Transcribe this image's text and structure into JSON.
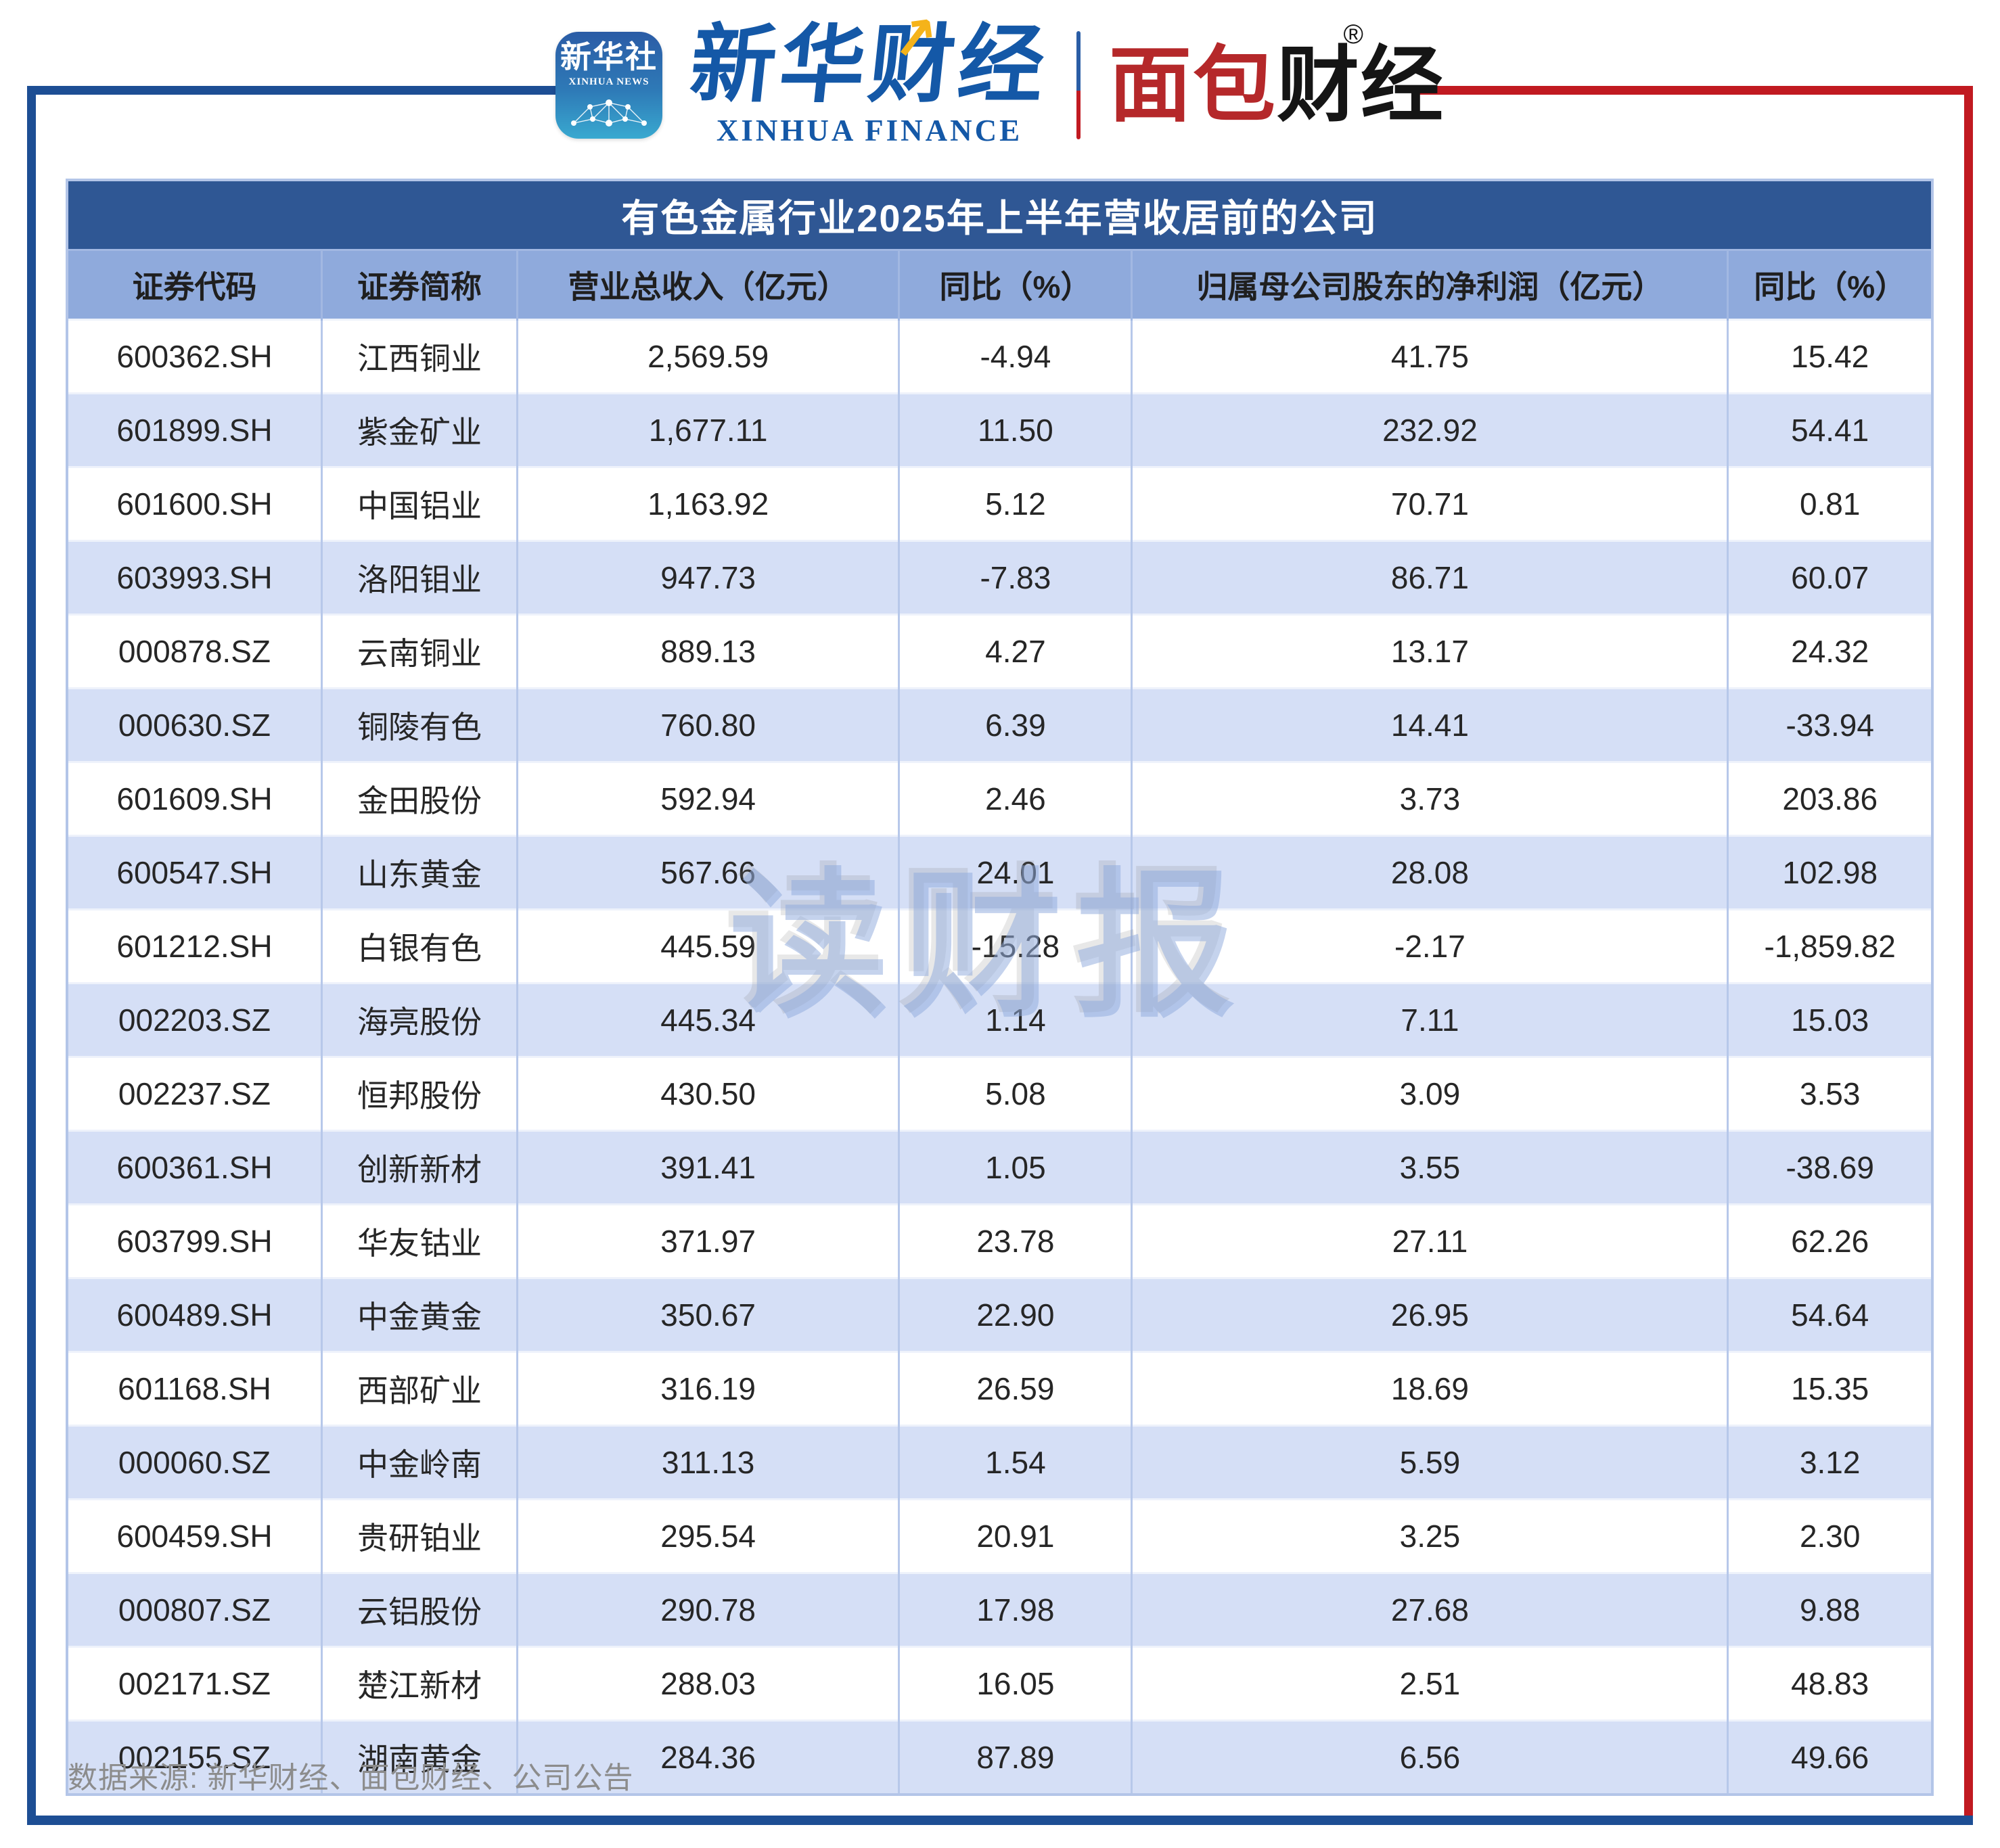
{
  "header": {
    "xinhua_icon": {
      "cn": "新华社",
      "en": "XINHUA NEWS"
    },
    "xinhua_finance": {
      "cn": "新华财经",
      "en": "XINHUA FINANCE",
      "arrow_icon": "trend-up-arrow"
    },
    "mianbao": {
      "red_part": "面包",
      "black_part": "财经",
      "reg_mark": "®"
    }
  },
  "colors": {
    "frame_blue": "#1d4e94",
    "frame_red": "#c11a21",
    "title_bar": "#2f5794",
    "header_row": "#8faadc",
    "alt_row": "#d5dff6"
  },
  "watermark": "读财报",
  "footer": {
    "source": "数据来源: 新华财经、面包财经、公司公告"
  },
  "chart_data": {
    "type": "table",
    "title": "有色金属行业2025年上半年营收居前的公司",
    "columns": [
      "证券代码",
      "证券简称",
      "营业总收入（亿元）",
      "同比（%）",
      "归属母公司股东的净利润（亿元）",
      "同比（%）"
    ],
    "rows": [
      [
        "600362.SH",
        "江西铜业",
        "2,569.59",
        "-4.94",
        "41.75",
        "15.42"
      ],
      [
        "601899.SH",
        "紫金矿业",
        "1,677.11",
        "11.50",
        "232.92",
        "54.41"
      ],
      [
        "601600.SH",
        "中国铝业",
        "1,163.92",
        "5.12",
        "70.71",
        "0.81"
      ],
      [
        "603993.SH",
        "洛阳钼业",
        "947.73",
        "-7.83",
        "86.71",
        "60.07"
      ],
      [
        "000878.SZ",
        "云南铜业",
        "889.13",
        "4.27",
        "13.17",
        "24.32"
      ],
      [
        "000630.SZ",
        "铜陵有色",
        "760.80",
        "6.39",
        "14.41",
        "-33.94"
      ],
      [
        "601609.SH",
        "金田股份",
        "592.94",
        "2.46",
        "3.73",
        "203.86"
      ],
      [
        "600547.SH",
        "山东黄金",
        "567.66",
        "24.01",
        "28.08",
        "102.98"
      ],
      [
        "601212.SH",
        "白银有色",
        "445.59",
        "-15.28",
        "-2.17",
        "-1,859.82"
      ],
      [
        "002203.SZ",
        "海亮股份",
        "445.34",
        "1.14",
        "7.11",
        "15.03"
      ],
      [
        "002237.SZ",
        "恒邦股份",
        "430.50",
        "5.08",
        "3.09",
        "3.53"
      ],
      [
        "600361.SH",
        "创新新材",
        "391.41",
        "1.05",
        "3.55",
        "-38.69"
      ],
      [
        "603799.SH",
        "华友钴业",
        "371.97",
        "23.78",
        "27.11",
        "62.26"
      ],
      [
        "600489.SH",
        "中金黄金",
        "350.67",
        "22.90",
        "26.95",
        "54.64"
      ],
      [
        "601168.SH",
        "西部矿业",
        "316.19",
        "26.59",
        "18.69",
        "15.35"
      ],
      [
        "000060.SZ",
        "中金岭南",
        "311.13",
        "1.54",
        "5.59",
        "3.12"
      ],
      [
        "600459.SH",
        "贵研铂业",
        "295.54",
        "20.91",
        "3.25",
        "2.30"
      ],
      [
        "000807.SZ",
        "云铝股份",
        "290.78",
        "17.98",
        "27.68",
        "9.88"
      ],
      [
        "002171.SZ",
        "楚江新材",
        "288.03",
        "16.05",
        "2.51",
        "48.83"
      ],
      [
        "002155.SZ",
        "湖南黄金",
        "284.36",
        "87.89",
        "6.56",
        "49.66"
      ]
    ]
  }
}
